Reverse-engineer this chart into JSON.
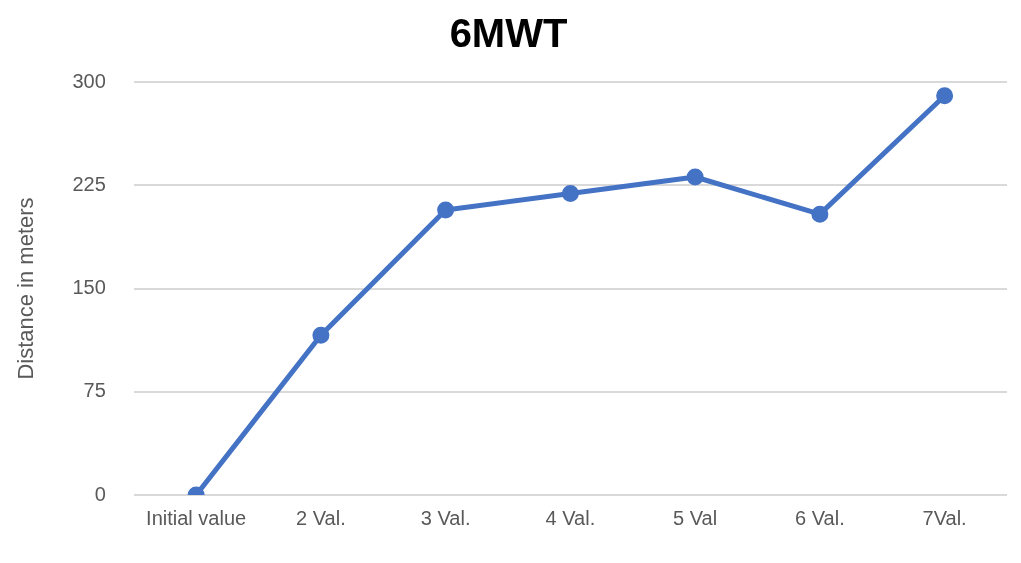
{
  "chart_data": {
    "type": "line",
    "title": "6MWT",
    "ylabel": "Distance in meters",
    "categories": [
      "Initial value",
      "2 Val.",
      "3 Val.",
      "4 Val.",
      "5 Val",
      "6 Val.",
      "7Val."
    ],
    "series": [
      {
        "color": "#4472c4",
        "values": [
          0,
          116,
          207,
          219,
          231,
          204,
          290
        ]
      }
    ],
    "ylim": [
      0,
      300
    ],
    "yticks": [
      0,
      75,
      150,
      225,
      300
    ],
    "grid": "y",
    "marker": "circle",
    "line_style": "solid",
    "legend": false
  }
}
